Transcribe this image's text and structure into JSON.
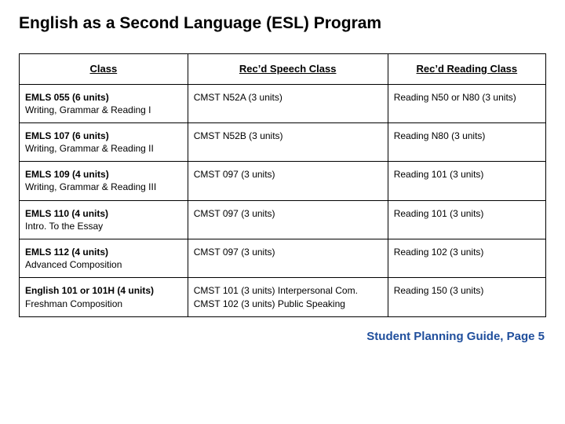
{
  "title": "English as a Second Language (ESL) Program",
  "columns": [
    "Class",
    "Rec’d Speech Class",
    "Rec’d Reading Class"
  ],
  "col_widths_pct": [
    32,
    38,
    30
  ],
  "rows": [
    {
      "class_code": "EMLS 055 (6 units)",
      "class_desc": "Writing, Grammar & Reading I",
      "speech": "CMST N52A (3 units)",
      "reading": "Reading N50 or N80 (3 units)"
    },
    {
      "class_code": "EMLS 107 (6 units)",
      "class_desc": "Writing, Grammar & Reading II",
      "speech": "CMST N52B (3 units)",
      "reading": "Reading N80 (3 units)"
    },
    {
      "class_code": "EMLS 109 (4 units)",
      "class_desc": "Writing, Grammar & Reading III",
      "speech": "CMST 097 (3 units)",
      "reading": "Reading 101 (3 units)"
    },
    {
      "class_code": "EMLS 110 (4 units)",
      "class_desc": "Intro. To the Essay",
      "speech": "CMST 097 (3 units)",
      "reading": "Reading 101 (3 units)"
    },
    {
      "class_code": "EMLS 112 (4 units)",
      "class_desc": "Advanced Composition",
      "speech": "CMST 097 (3 units)",
      "reading": "Reading 102 (3 units)"
    },
    {
      "class_code": "English 101 or 101H (4 units)",
      "class_desc": "Freshman Composition",
      "speech": "CMST 101 (3 units) Interpersonal Com. CMST 102 (3 units) Public Speaking",
      "reading": "Reading 150 (3 units)"
    }
  ],
  "footer": "Student Planning Guide, Page 5",
  "colors": {
    "title": "#000000",
    "border": "#000000",
    "footer": "#1f4e9c",
    "background": "#ffffff"
  },
  "fonts": {
    "family": "Verdana, Geneva, sans-serif",
    "title_size_pt": 16,
    "header_size_pt": 10,
    "body_size_pt": 9,
    "footer_size_pt": 11
  }
}
